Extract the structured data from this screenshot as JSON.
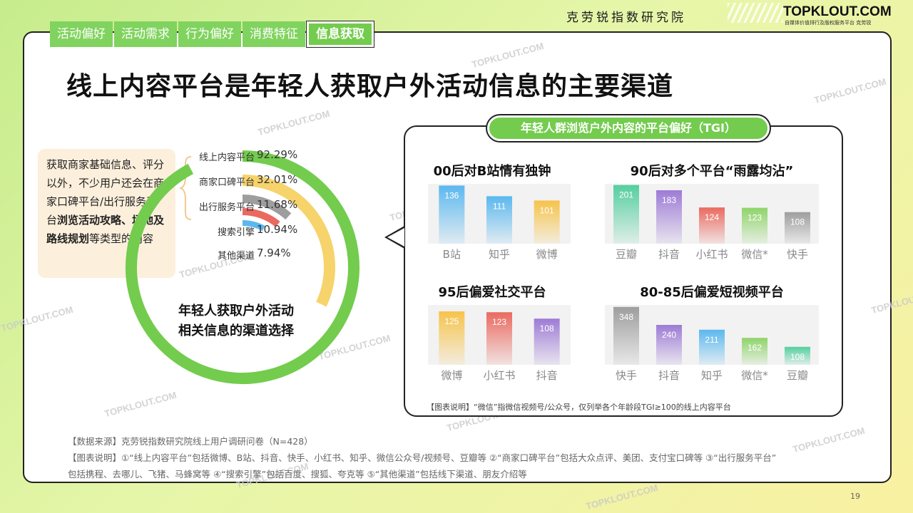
{
  "header": {
    "brand_cn": "克劳锐指数研究院",
    "logo": "TOPKLOUT.COM",
    "logo_sub": "自媒体价值排行及版权服务平台 克劳锐"
  },
  "tabs": [
    {
      "label": "活动偏好"
    },
    {
      "label": "活动需求"
    },
    {
      "label": "行为偏好"
    },
    {
      "label": "消费特征"
    },
    {
      "label": "信息获取"
    }
  ],
  "page_title": "线上内容平台是年轻人获取户外活动信息的主要渠道",
  "watermark_text": "TOPKLOUT.COM",
  "left_box": {
    "text_1": "获取商家基础信息、评分以外，不少用户还会在商家口碑平台/出行服务平台",
    "text_bold": "浏览活动攻略、场地及路线规划",
    "text_2": "等类型的内容"
  },
  "donut_center": {
    "line1": "年轻人获取户外活动",
    "line2": "相关信息的渠道选择"
  },
  "panel": {
    "title": "年轻人群浏览户外内容的平台偏好（TGI）",
    "note": "【图表说明】“微信”指微信视频号/公众号，仅列举各个年龄段TGI≥100的线上内容平台"
  },
  "footnotes": {
    "line1": "【数据来源】克劳锐指数研究院线上用户调研问卷（N=428）",
    "line2": "【图表说明】①“线上内容平台”包括微博、B站、抖音、快手、小红书、知乎、微信公众号/视频号、豆瓣等 ②“商家口碑平台”包括大众点评、美团、支付宝口碑等 ③“出行服务平台”",
    "line3": "包括携程、去哪儿、飞猪、马蜂窝等 ④“搜索引擎”包括百度、搜狐、夸克等 ⑤“其他渠道”包括线下渠道、朋友介绍等"
  },
  "page_number": "19",
  "colors": {
    "green": "#73cc4d",
    "yellow": "#f6d36b",
    "gray": "#9e9e9e",
    "red": "#ea6a60",
    "blue": "#5bb8ef",
    "purple": "#9d7bd5",
    "teal": "#55cfa0"
  },
  "chart_data": [
    {
      "type": "pie",
      "variant": "radial-bar",
      "categories": [
        "线上内容平台",
        "商家口碑平台",
        "出行服务平台",
        "搜索引擎",
        "其他渠道"
      ],
      "values": [
        92.29,
        32.01,
        11.68,
        10.94,
        7.94
      ],
      "value_labels": [
        "92.29%",
        "32.01%",
        "11.68%",
        "10.94%",
        "7.94%"
      ],
      "colors": [
        "#73cc4d",
        "#f6d36b",
        "#9e9e9e",
        "#ea6a60",
        "#5bb8ef"
      ]
    },
    {
      "type": "bar",
      "title": "00后对B站情有独钟",
      "categories": [
        "B站",
        "知乎",
        "微博"
      ],
      "values": [
        136,
        111,
        101
      ],
      "colors": [
        "#5bb8ef",
        "#5bb8ef",
        "#f6c34b"
      ]
    },
    {
      "type": "bar",
      "title": "90后对多个平台“雨露均沾”",
      "categories": [
        "豆瓣",
        "抖音",
        "小红书",
        "微信*",
        "快手"
      ],
      "values": [
        201,
        183,
        124,
        123,
        108
      ],
      "colors": [
        "#55cfa0",
        "#9d7bd5",
        "#ea6a60",
        "#8fd46a",
        "#9e9e9e"
      ]
    },
    {
      "type": "bar",
      "title": "95后偏爱社交平台",
      "categories": [
        "微博",
        "小红书",
        "抖音"
      ],
      "values": [
        125,
        123,
        108
      ],
      "colors": [
        "#f6c34b",
        "#ea6a60",
        "#9d7bd5"
      ]
    },
    {
      "type": "bar",
      "title": "80-85后偏爱短视频平台",
      "categories": [
        "快手",
        "抖音",
        "知乎",
        "微信*",
        "豆瓣"
      ],
      "values": [
        348,
        240,
        211,
        162,
        108
      ],
      "colors": [
        "#9e9e9e",
        "#9d7bd5",
        "#5bb8ef",
        "#8fd46a",
        "#55cfa0"
      ]
    }
  ]
}
